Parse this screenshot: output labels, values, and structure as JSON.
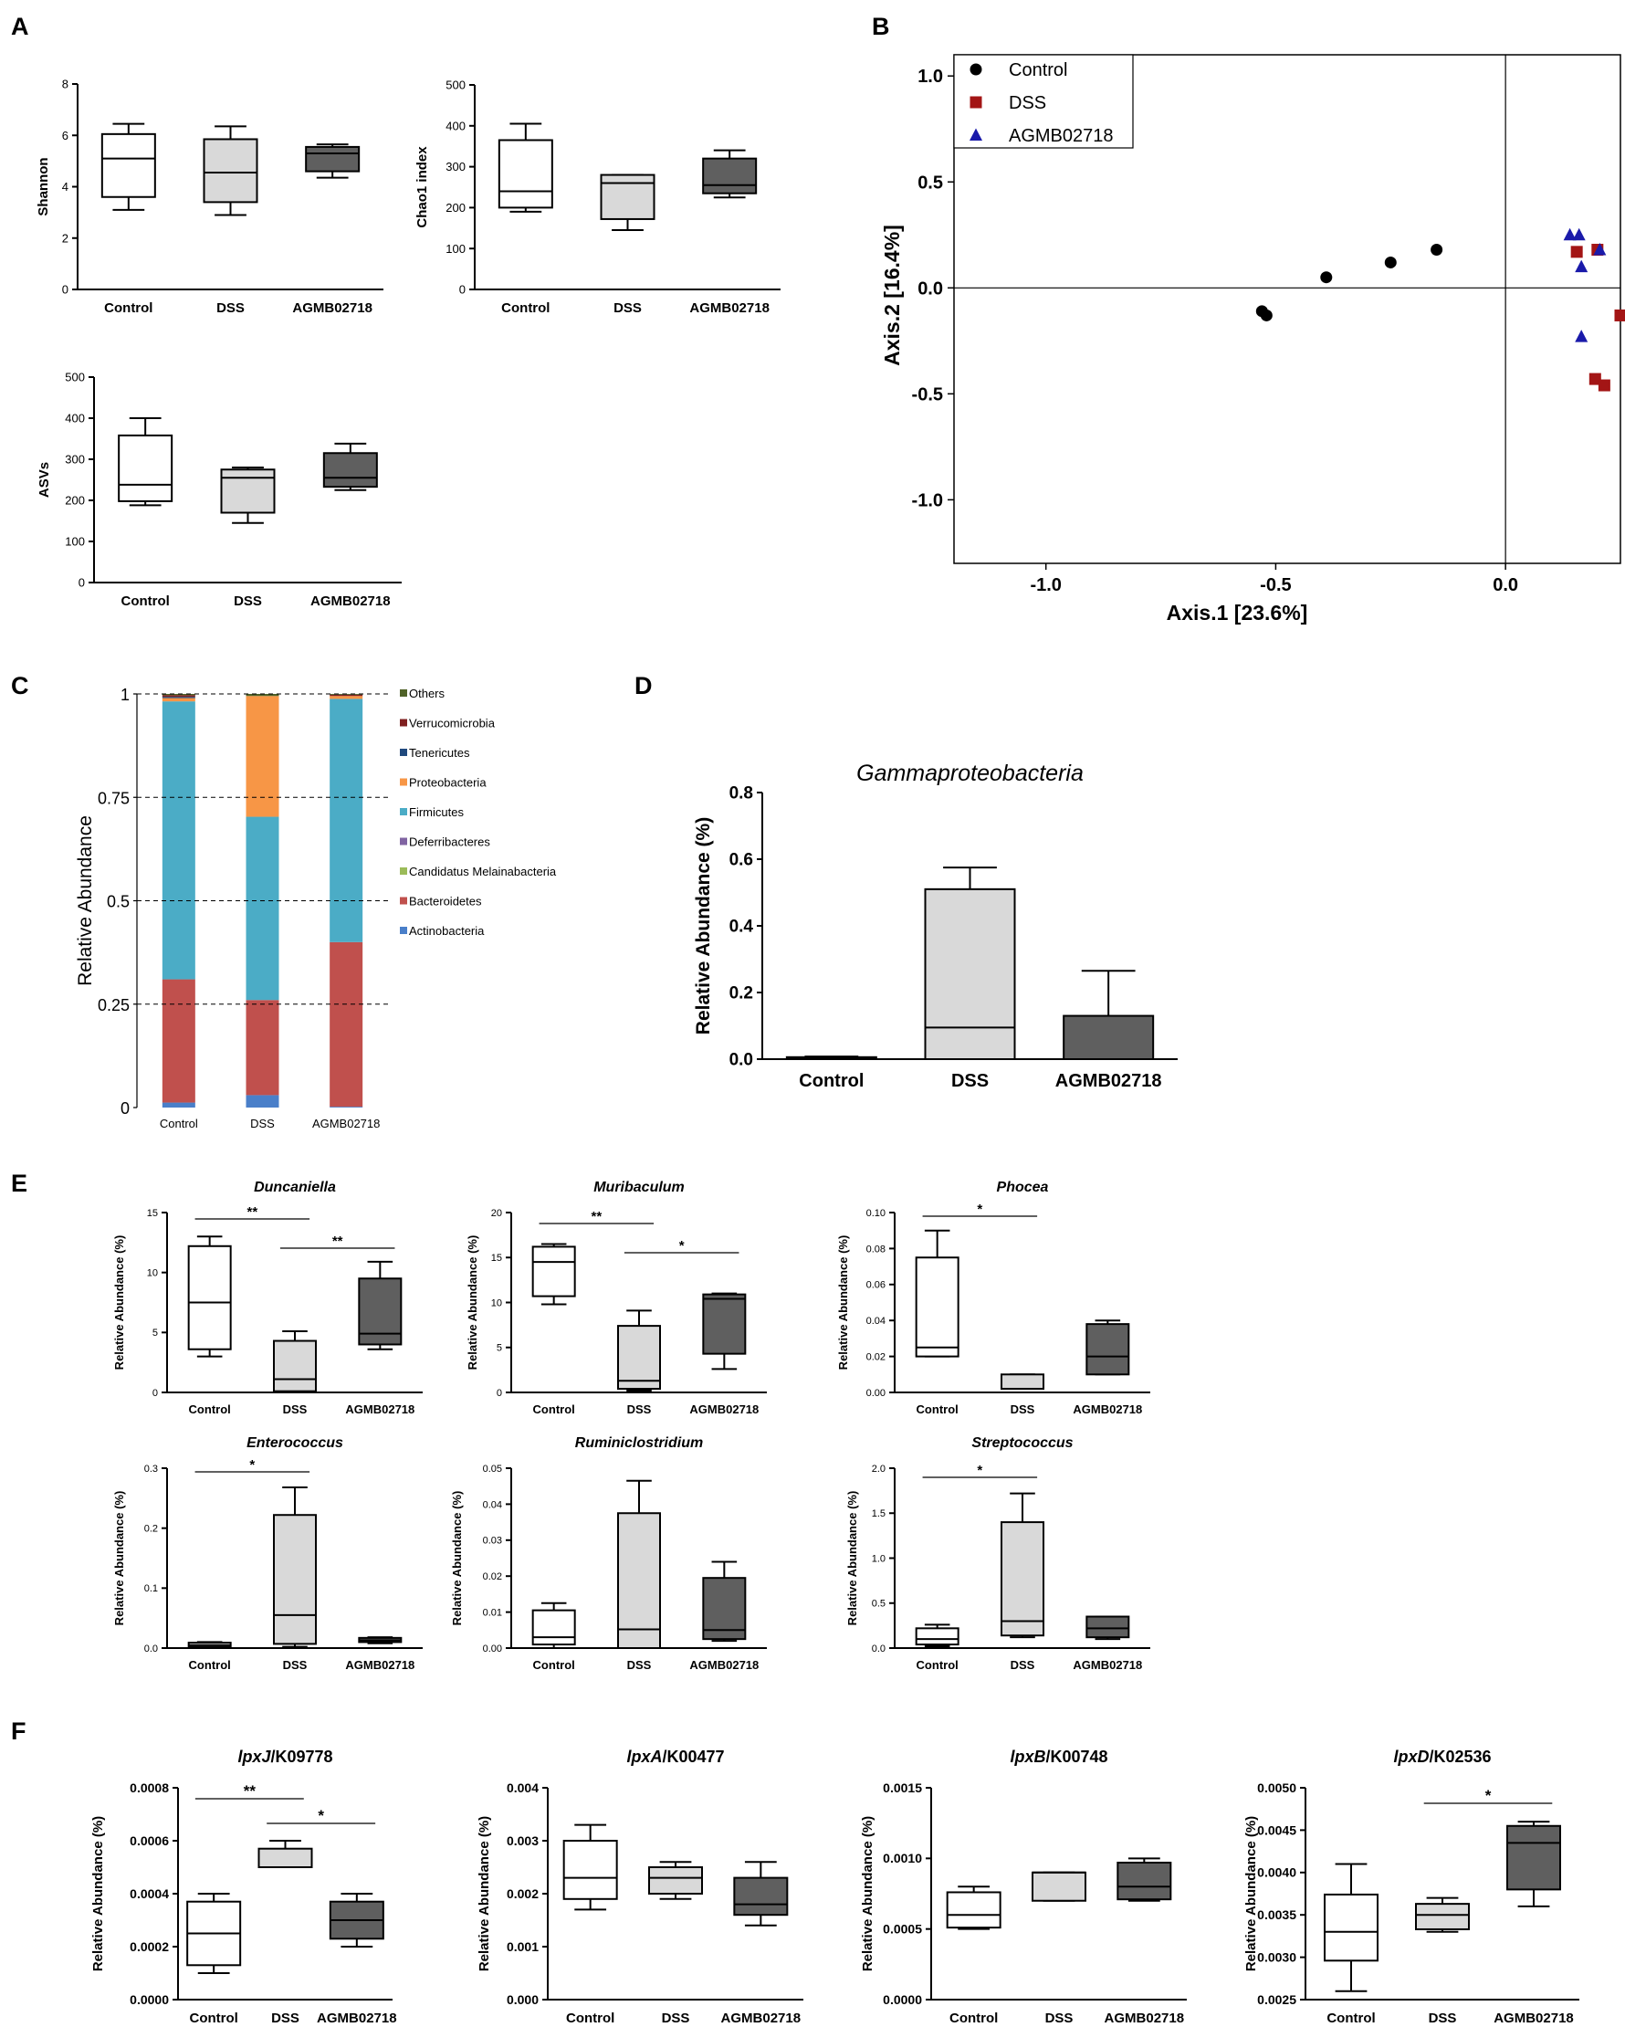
{
  "panel_letters": [
    "A",
    "B",
    "C",
    "D",
    "E",
    "F"
  ],
  "categories": [
    "Control",
    "DSS",
    "AGMB02718"
  ],
  "colors": {
    "control": "#ffffff",
    "dss": "#d9d9d9",
    "agmb": "#5f5f5f",
    "ctrl_pt": "#000000",
    "dss_pt": "#a31515",
    "agmb_pt": "#1a1aaa"
  },
  "chart_data": [
    {
      "id": "A1",
      "type": "box",
      "title": "",
      "ylabel": "Shannon",
      "ylim": [
        0,
        8
      ],
      "yticks": [
        0,
        2,
        4,
        6,
        8
      ],
      "boxes": [
        {
          "min": 3.1,
          "q1": 3.6,
          "median": 5.1,
          "q3": 6.05,
          "max": 6.45
        },
        {
          "min": 2.9,
          "q1": 3.4,
          "median": 4.55,
          "q3": 5.85,
          "max": 6.35
        },
        {
          "min": 4.35,
          "q1": 4.6,
          "median": 5.3,
          "q3": 5.55,
          "max": 5.65
        }
      ]
    },
    {
      "id": "A2",
      "type": "box",
      "title": "",
      "ylabel": "Chao1 index",
      "ylim": [
        0,
        500
      ],
      "yticks": [
        0,
        100,
        200,
        300,
        400,
        500
      ],
      "boxes": [
        {
          "min": 190,
          "q1": 200,
          "median": 240,
          "q3": 365,
          "max": 405
        },
        {
          "min": 145,
          "q1": 172,
          "median": 260,
          "q3": 280,
          "max": 280
        },
        {
          "min": 225,
          "q1": 235,
          "median": 255,
          "q3": 320,
          "max": 340
        }
      ]
    },
    {
      "id": "A3",
      "type": "box",
      "title": "",
      "ylabel": "ASVs",
      "ylim": [
        0,
        500
      ],
      "yticks": [
        0,
        100,
        200,
        300,
        400,
        500
      ],
      "boxes": [
        {
          "min": 188,
          "q1": 198,
          "median": 238,
          "q3": 358,
          "max": 400
        },
        {
          "min": 145,
          "q1": 170,
          "median": 255,
          "q3": 275,
          "max": 280
        },
        {
          "min": 225,
          "q1": 233,
          "median": 255,
          "q3": 315,
          "max": 338
        }
      ]
    },
    {
      "id": "B",
      "type": "scatter",
      "xlabel": "Axis.1 [23.6%]",
      "ylabel": "Axis.2 [16.4%]",
      "xlim": [
        -1.2,
        0.25
      ],
      "ylim": [
        -1.3,
        1.1
      ],
      "xticks": [
        -1.0,
        -0.5,
        0.0
      ],
      "xtick_labels": [
        "-1.0",
        "-0.5",
        "0.0"
      ],
      "yticks": [
        1.0,
        0.5,
        0.0,
        -0.5,
        -1.0
      ],
      "ytick_labels": [
        "1.0",
        "0.5",
        "0.0",
        "-0.5",
        "-1.0"
      ],
      "legend": [
        "Control",
        "DSS",
        "AGMB02718"
      ],
      "series": [
        {
          "name": "Control",
          "points": [
            [
              -0.53,
              -0.11
            ],
            [
              -0.52,
              -0.13
            ],
            [
              -0.39,
              0.05
            ],
            [
              -0.25,
              0.12
            ],
            [
              -0.15,
              0.18
            ]
          ]
        },
        {
          "name": "DSS",
          "points": [
            [
              0.155,
              0.17
            ],
            [
              0.2,
              0.18
            ],
            [
              0.25,
              -0.13
            ],
            [
              0.195,
              -0.43
            ],
            [
              0.215,
              -0.46
            ]
          ]
        },
        {
          "name": "AGMB02718",
          "points": [
            [
              0.14,
              0.25
            ],
            [
              0.16,
              0.25
            ],
            [
              0.205,
              0.18
            ],
            [
              0.165,
              0.1
            ],
            [
              0.165,
              -0.23
            ]
          ]
        }
      ]
    },
    {
      "id": "C",
      "type": "stacked-bar",
      "ylabel": "Relative Abundance",
      "ylim": [
        0,
        1
      ],
      "yticks": [
        0,
        0.25,
        0.5,
        0.75,
        1
      ],
      "ytick_labels": [
        "0",
        "0.25",
        "0.5",
        "0.75",
        "1"
      ],
      "legend_order": [
        "Others",
        "Verrucomicrobia",
        "Tenericutes",
        "Proteobacteria",
        "Firmicutes",
        "Deferribacteres",
        "Candidatus Melainabacteria",
        "Bacteroidetes",
        "Actinobacteria"
      ],
      "series": [
        {
          "name": "Actinobacteria",
          "color": "#4a7fc9",
          "values": [
            0.012,
            0.03,
            0.002
          ]
        },
        {
          "name": "Bacteroidetes",
          "color": "#c0504d",
          "values": [
            0.298,
            0.23,
            0.398
          ]
        },
        {
          "name": "Candidatus Melainabacteria",
          "color": "#9bbb59",
          "values": [
            0.0,
            0.0,
            0.0
          ]
        },
        {
          "name": "Deferribacteres",
          "color": "#8064a2",
          "values": [
            0.0,
            0.0,
            0.0
          ]
        },
        {
          "name": "Firmicutes",
          "color": "#4bacc6",
          "values": [
            0.672,
            0.443,
            0.588
          ]
        },
        {
          "name": "Proteobacteria",
          "color": "#f79646",
          "values": [
            0.008,
            0.292,
            0.007
          ]
        },
        {
          "name": "Tenericutes",
          "color": "#1f497d",
          "values": [
            0.003,
            0.0,
            0.0
          ]
        },
        {
          "name": "Verrucomicrobia",
          "color": "#7f1f1f",
          "values": [
            0.004,
            0.0,
            0.003
          ]
        },
        {
          "name": "Others",
          "color": "#4f6228",
          "values": [
            0.003,
            0.005,
            0.002
          ]
        }
      ]
    },
    {
      "id": "D",
      "type": "box",
      "title": "Gammaproteobacteria",
      "ylabel": "Relative Abundance (%)",
      "ylim": [
        0,
        0.8
      ],
      "yticks": [
        0,
        0.2,
        0.4,
        0.6,
        0.8
      ],
      "ytick_labels": [
        "0.0",
        "0.2",
        "0.4",
        "0.6",
        "0.8"
      ],
      "boxes": [
        {
          "min": 0.0,
          "q1": 0.0,
          "median": 0.003,
          "q3": 0.006,
          "max": 0.008
        },
        {
          "min": 0.0,
          "q1": 0.0,
          "median": 0.095,
          "q3": 0.51,
          "max": 0.575
        },
        {
          "min": 0.0,
          "q1": 0.0,
          "median": 0.0,
          "q3": 0.13,
          "max": 0.265
        }
      ]
    },
    {
      "id": "E1",
      "type": "box",
      "title": "Duncaniella",
      "ylabel": "Relative Abundance (%)",
      "ylim": [
        0,
        15
      ],
      "yticks": [
        0,
        5,
        10,
        15
      ],
      "boxes": [
        {
          "min": 3.0,
          "q1": 3.6,
          "median": 7.5,
          "q3": 12.2,
          "max": 13.0
        },
        {
          "min": 0.0,
          "q1": 0.1,
          "median": 1.1,
          "q3": 4.3,
          "max": 5.1
        },
        {
          "min": 3.6,
          "q1": 4.0,
          "median": 4.9,
          "q3": 9.5,
          "max": 10.9
        }
      ],
      "sig": [
        {
          "a": 0,
          "b": 1,
          "label": "**"
        },
        {
          "a": 1,
          "b": 2,
          "label": "**"
        }
      ]
    },
    {
      "id": "E2",
      "type": "box",
      "title": "Muribaculum",
      "ylabel": "Relative Abundance (%)",
      "ylim": [
        0,
        20
      ],
      "yticks": [
        0,
        5,
        10,
        15,
        20
      ],
      "boxes": [
        {
          "min": 9.8,
          "q1": 10.7,
          "median": 14.5,
          "q3": 16.2,
          "max": 16.5
        },
        {
          "min": 0.2,
          "q1": 0.4,
          "median": 1.3,
          "q3": 7.4,
          "max": 9.1
        },
        {
          "min": 2.6,
          "q1": 4.3,
          "median": 10.4,
          "q3": 10.9,
          "max": 11.0
        }
      ],
      "sig": [
        {
          "a": 0,
          "b": 1,
          "label": "**"
        },
        {
          "a": 1,
          "b": 2,
          "label": "*"
        }
      ]
    },
    {
      "id": "E3",
      "type": "box",
      "title": "Phocea",
      "ylabel": "Relative Abundance (%)",
      "ylim": [
        0,
        0.1
      ],
      "yticks": [
        0,
        0.02,
        0.04,
        0.06,
        0.08,
        0.1
      ],
      "ytick_labels": [
        "0.00",
        "0.02",
        "0.04",
        "0.06",
        "0.08",
        "0.10"
      ],
      "boxes": [
        {
          "min": 0.02,
          "q1": 0.02,
          "median": 0.025,
          "q3": 0.075,
          "max": 0.09
        },
        {
          "min": 0.002,
          "q1": 0.002,
          "median": 0.002,
          "q3": 0.01,
          "max": 0.01
        },
        {
          "min": 0.01,
          "q1": 0.01,
          "median": 0.02,
          "q3": 0.038,
          "max": 0.04
        }
      ],
      "sig": [
        {
          "a": 0,
          "b": 1,
          "label": "*"
        }
      ]
    },
    {
      "id": "E4",
      "type": "box",
      "title": "Enterococcus",
      "ylabel": "Relative Abundance (%)",
      "ylim": [
        0,
        0.3
      ],
      "yticks": [
        0,
        0.1,
        0.2,
        0.3
      ],
      "ytick_labels": [
        "0.0",
        "0.1",
        "0.2",
        "0.3"
      ],
      "boxes": [
        {
          "min": 0.0,
          "q1": 0.002,
          "median": 0.005,
          "q3": 0.009,
          "max": 0.01
        },
        {
          "min": 0.002,
          "q1": 0.007,
          "median": 0.055,
          "q3": 0.222,
          "max": 0.268
        },
        {
          "min": 0.008,
          "q1": 0.01,
          "median": 0.013,
          "q3": 0.017,
          "max": 0.018
        }
      ],
      "sig": [
        {
          "a": 0,
          "b": 1,
          "label": "*"
        }
      ]
    },
    {
      "id": "E5",
      "type": "box",
      "title": "Ruminiclostridium",
      "ylabel": "Relative Abundance (%)",
      "ylim": [
        0,
        0.05
      ],
      "yticks": [
        0,
        0.01,
        0.02,
        0.03,
        0.04,
        0.05
      ],
      "ytick_labels": [
        "0.00",
        "0.01",
        "0.02",
        "0.03",
        "0.04",
        "0.05"
      ],
      "boxes": [
        {
          "min": 0.0,
          "q1": 0.001,
          "median": 0.003,
          "q3": 0.0105,
          "max": 0.0125
        },
        {
          "min": 0.0,
          "q1": 0.0,
          "median": 0.0052,
          "q3": 0.0375,
          "max": 0.0465
        },
        {
          "min": 0.002,
          "q1": 0.0025,
          "median": 0.005,
          "q3": 0.0195,
          "max": 0.024
        }
      ]
    },
    {
      "id": "E6",
      "type": "box",
      "title": "Streptococcus",
      "ylabel": "Relative Abundance (%)",
      "ylim": [
        0,
        2.0
      ],
      "yticks": [
        0,
        0.5,
        1.0,
        1.5,
        2.0
      ],
      "ytick_labels": [
        "0.0",
        "0.5",
        "1.0",
        "1.5",
        "2.0"
      ],
      "boxes": [
        {
          "min": 0.02,
          "q1": 0.04,
          "median": 0.1,
          "q3": 0.22,
          "max": 0.26
        },
        {
          "min": 0.12,
          "q1": 0.14,
          "median": 0.3,
          "q3": 1.4,
          "max": 1.72
        },
        {
          "min": 0.1,
          "q1": 0.12,
          "median": 0.22,
          "q3": 0.35,
          "max": 0.35
        }
      ],
      "sig": [
        {
          "a": 0,
          "b": 1,
          "label": "*"
        }
      ]
    },
    {
      "id": "F1",
      "type": "box",
      "title_italic": "lpxJ",
      "title_rest": "/K09778",
      "ylabel": "Relative Abundance (%)",
      "ylim": [
        0,
        0.0008
      ],
      "yticks": [
        0,
        0.0002,
        0.0004,
        0.0006,
        0.0008
      ],
      "ytick_labels": [
        "0.0000",
        "0.0002",
        "0.0004",
        "0.0006",
        "0.0008"
      ],
      "boxes": [
        {
          "min": 0.0001,
          "q1": 0.00013,
          "median": 0.00025,
          "q3": 0.00037,
          "max": 0.0004
        },
        {
          "min": 0.0005,
          "q1": 0.0005,
          "median": 0.0005,
          "q3": 0.00057,
          "max": 0.0006
        },
        {
          "min": 0.0002,
          "q1": 0.00023,
          "median": 0.0003,
          "q3": 0.00037,
          "max": 0.0004
        }
      ],
      "sig": [
        {
          "a": 0,
          "b": 1,
          "label": "**"
        },
        {
          "a": 1,
          "b": 2,
          "label": "*"
        }
      ]
    },
    {
      "id": "F2",
      "type": "box",
      "title_italic": "lpxA",
      "title_rest": "/K00477",
      "ylabel": "Relative Abundance (%)",
      "ylim": [
        0,
        0.004
      ],
      "yticks": [
        0,
        0.001,
        0.002,
        0.003,
        0.004
      ],
      "ytick_labels": [
        "0.000",
        "0.001",
        "0.002",
        "0.003",
        "0.004"
      ],
      "boxes": [
        {
          "min": 0.0017,
          "q1": 0.0019,
          "median": 0.0023,
          "q3": 0.003,
          "max": 0.0033
        },
        {
          "min": 0.0019,
          "q1": 0.002,
          "median": 0.0023,
          "q3": 0.0025,
          "max": 0.0026
        },
        {
          "min": 0.0014,
          "q1": 0.0016,
          "median": 0.0018,
          "q3": 0.0023,
          "max": 0.0026
        }
      ]
    },
    {
      "id": "F3",
      "type": "box",
      "title_italic": "lpxB",
      "title_rest": "/K00748",
      "ylabel": "Relative Abundance (%)",
      "ylim": [
        0,
        0.0015
      ],
      "yticks": [
        0,
        0.0005,
        0.001,
        0.0015
      ],
      "ytick_labels": [
        "0.0000",
        "0.0005",
        "0.0010",
        "0.0015"
      ],
      "boxes": [
        {
          "min": 0.0005,
          "q1": 0.00051,
          "median": 0.0006,
          "q3": 0.00076,
          "max": 0.0008
        },
        {
          "min": 0.0007,
          "q1": 0.0007,
          "median": 0.0009,
          "q3": 0.0009,
          "max": 0.0009
        },
        {
          "min": 0.0007,
          "q1": 0.00071,
          "median": 0.0008,
          "q3": 0.00097,
          "max": 0.001
        }
      ]
    },
    {
      "id": "F4",
      "type": "box",
      "title_italic": "lpxD",
      "title_rest": "/K02536",
      "ylabel": "Relative Abundance (%)",
      "ylim": [
        0.0025,
        0.005
      ],
      "yticks": [
        0.0025,
        0.003,
        0.0035,
        0.004,
        0.0045,
        0.005
      ],
      "ytick_labels": [
        "0.0025",
        "0.0030",
        "0.0035",
        "0.0040",
        "0.0045",
        "0.0050"
      ],
      "boxes": [
        {
          "min": 0.0026,
          "q1": 0.00296,
          "median": 0.0033,
          "q3": 0.00374,
          "max": 0.0041
        },
        {
          "min": 0.0033,
          "q1": 0.00333,
          "median": 0.0035,
          "q3": 0.00363,
          "max": 0.0037
        },
        {
          "min": 0.0036,
          "q1": 0.0038,
          "median": 0.00435,
          "q3": 0.00455,
          "max": 0.0046
        }
      ],
      "sig": [
        {
          "a": 1,
          "b": 2,
          "label": "*"
        }
      ]
    }
  ]
}
